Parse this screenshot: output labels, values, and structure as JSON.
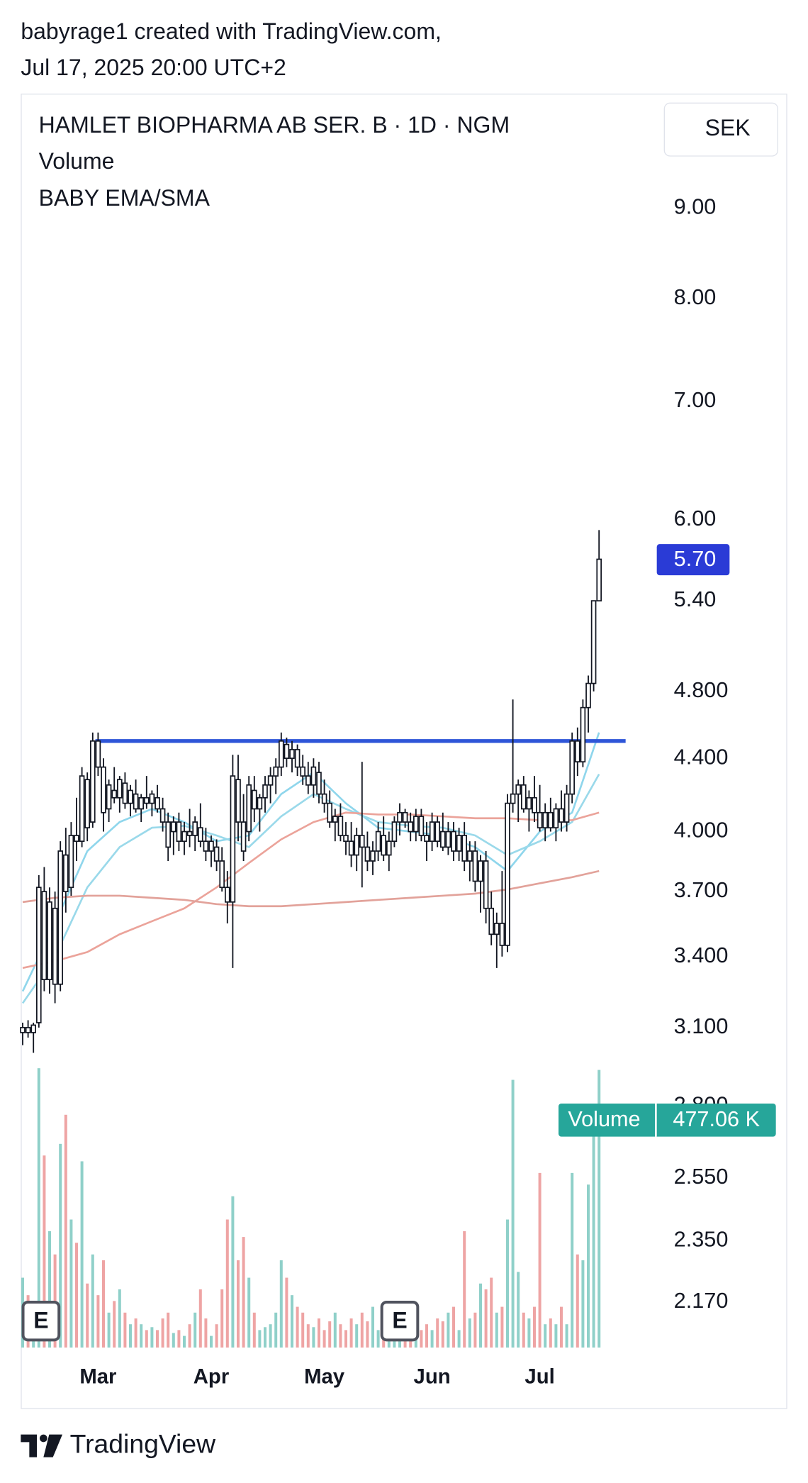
{
  "header": {
    "attribution": "babyrage1 created with TradingView.com,",
    "timestamp": "Jul 17, 2025 20:00 UTC+2"
  },
  "chart_data": {
    "type": "candlestick",
    "title": "HAMLET BIOPHARMA AB SER. B · 1D · NGM",
    "currency": "SEK",
    "log_scale": true,
    "ylim": [
      2.045,
      10.43
    ],
    "yticks": [
      {
        "value": 9,
        "label": "9.00"
      },
      {
        "value": 8,
        "label": "8.00"
      },
      {
        "value": 7,
        "label": "7.00"
      },
      {
        "value": 6,
        "label": "6.00"
      },
      {
        "value": 5.4,
        "label": "5.40"
      },
      {
        "value": 4.8,
        "label": "4.800"
      },
      {
        "value": 4.4,
        "label": "4.400"
      },
      {
        "value": 4,
        "label": "4.000"
      },
      {
        "value": 3.7,
        "label": "3.700"
      },
      {
        "value": 3.4,
        "label": "3.400"
      },
      {
        "value": 3.1,
        "label": "3.100"
      },
      {
        "value": 2.8,
        "label": "2.800"
      },
      {
        "value": 2.55,
        "label": "2.550"
      },
      {
        "value": 2.35,
        "label": "2.350"
      },
      {
        "value": 2.17,
        "label": "2.170"
      }
    ],
    "categories": [
      null,
      null,
      null,
      null,
      null,
      null,
      null,
      null,
      null,
      null,
      null,
      null,
      null,
      null,
      "Mar",
      null,
      null,
      null,
      null,
      null,
      null,
      null,
      null,
      null,
      null,
      null,
      null,
      null,
      null,
      null,
      null,
      null,
      null,
      null,
      null,
      "Apr",
      null,
      null,
      null,
      null,
      null,
      null,
      null,
      null,
      null,
      null,
      null,
      null,
      null,
      null,
      null,
      null,
      null,
      null,
      null,
      null,
      "May",
      null,
      null,
      null,
      null,
      null,
      null,
      null,
      null,
      null,
      null,
      null,
      null,
      null,
      null,
      null,
      null,
      null,
      null,
      null,
      "Jun",
      null,
      null,
      null,
      null,
      null,
      null,
      null,
      null,
      null,
      null,
      null,
      null,
      null,
      null,
      null,
      null,
      null,
      null,
      null,
      "Jul",
      null,
      null,
      null,
      null,
      null,
      null,
      null,
      null,
      null,
      null,
      null
    ],
    "open": [
      3.08,
      3.1,
      3.08,
      3.12,
      3.7,
      3.3,
      3.62,
      3.28,
      3.88,
      3.72,
      3.98,
      3.95,
      4.28,
      4.05,
      4.5,
      4.35,
      4.12,
      4.22,
      4.18,
      4.26,
      4.15,
      4.2,
      4.12,
      4.18,
      4.15,
      4.18,
      4.12,
      4.05,
      4.0,
      4.05,
      3.95,
      4.0,
      3.98,
      4.02,
      3.95,
      3.9,
      3.92,
      3.85,
      3.72,
      3.65,
      4.28,
      4.05,
      4.0,
      4.22,
      4.12,
      4.18,
      4.25,
      4.3,
      4.35,
      4.48,
      4.4,
      4.45,
      4.35,
      4.3,
      4.25,
      4.32,
      4.2,
      4.15,
      4.05,
      4.08,
      3.98,
      3.95,
      3.88,
      3.98,
      3.92,
      3.85,
      3.9,
      3.98,
      3.88,
      3.95,
      4.05,
      4.1,
      4.05,
      4.0,
      4.08,
      3.98,
      3.95,
      4.05,
      4.0,
      3.92,
      4.0,
      3.9,
      3.98,
      3.85,
      3.9,
      3.75,
      3.85,
      3.62,
      3.5,
      3.55,
      3.45,
      4.15,
      4.2,
      4.25,
      4.12,
      4.18,
      4.1,
      4.02,
      4.1,
      4.02,
      4.12,
      4.05,
      4.2,
      4.5,
      4.38,
      4.7,
      4.85,
      5.4
    ],
    "high": [
      3.12,
      3.13,
      3.12,
      3.78,
      3.82,
      3.72,
      3.7,
      3.95,
      4.02,
      4.05,
      4.18,
      4.35,
      4.32,
      4.55,
      4.55,
      4.4,
      4.28,
      4.35,
      4.3,
      4.32,
      4.25,
      4.28,
      4.2,
      4.3,
      4.22,
      4.25,
      4.18,
      4.1,
      4.08,
      4.1,
      4.05,
      4.12,
      4.08,
      4.15,
      4.02,
      3.98,
      3.96,
      3.92,
      3.8,
      4.42,
      4.42,
      4.2,
      4.3,
      4.3,
      4.2,
      4.3,
      4.35,
      4.4,
      4.55,
      4.52,
      4.5,
      4.48,
      4.42,
      4.38,
      4.4,
      4.38,
      4.28,
      4.22,
      4.12,
      4.15,
      4.05,
      4.05,
      4.02,
      4.38,
      4.0,
      3.95,
      4.05,
      4.08,
      4.0,
      4.08,
      4.15,
      4.12,
      4.1,
      4.12,
      4.12,
      4.05,
      4.1,
      4.08,
      4.1,
      4.05,
      4.05,
      4.02,
      4.05,
      3.95,
      3.95,
      3.88,
      3.9,
      3.7,
      3.6,
      3.8,
      4.2,
      4.75,
      4.28,
      4.3,
      4.22,
      4.3,
      4.25,
      4.15,
      4.18,
      4.15,
      4.22,
      4.25,
      4.55,
      4.58,
      4.75,
      4.9,
      5.4,
      5.92
    ],
    "low": [
      3.03,
      3.06,
      3.0,
      3.1,
      3.25,
      3.24,
      3.2,
      3.25,
      3.6,
      3.68,
      3.85,
      3.92,
      3.95,
      4.02,
      4.3,
      4.0,
      4.05,
      4.15,
      4.1,
      4.12,
      4.08,
      4.1,
      4.05,
      4.12,
      4.08,
      4.1,
      4.0,
      3.85,
      3.88,
      3.9,
      3.88,
      3.92,
      3.9,
      3.92,
      3.85,
      3.82,
      3.8,
      3.7,
      3.55,
      3.35,
      3.95,
      3.85,
      3.95,
      4.05,
      4.0,
      4.1,
      4.15,
      4.2,
      4.3,
      4.35,
      4.32,
      4.3,
      4.25,
      4.2,
      4.18,
      4.15,
      4.1,
      4.02,
      3.95,
      3.95,
      3.88,
      3.82,
      3.8,
      3.72,
      3.8,
      3.78,
      3.85,
      3.85,
      3.8,
      3.92,
      3.98,
      4.02,
      3.95,
      3.95,
      3.95,
      3.85,
      3.9,
      3.92,
      3.9,
      3.88,
      3.85,
      3.85,
      3.8,
      3.75,
      3.7,
      3.6,
      3.55,
      3.45,
      3.35,
      3.4,
      3.42,
      4.1,
      4.05,
      4.1,
      4.0,
      4.05,
      4.0,
      3.95,
      4.0,
      3.95,
      4.0,
      4.0,
      4.15,
      4.3,
      4.35,
      4.55,
      4.8,
      5.4
    ],
    "close": [
      3.1,
      3.08,
      3.11,
      3.72,
      3.3,
      3.65,
      3.28,
      3.9,
      3.7,
      3.98,
      3.95,
      4.3,
      4.02,
      4.5,
      4.35,
      4.1,
      4.25,
      4.18,
      4.28,
      4.15,
      4.22,
      4.12,
      4.18,
      4.15,
      4.2,
      4.12,
      4.05,
      3.92,
      4.05,
      3.95,
      4.0,
      3.98,
      4.05,
      3.95,
      3.9,
      3.95,
      3.85,
      3.72,
      3.65,
      4.3,
      4.05,
      3.9,
      4.25,
      4.12,
      4.18,
      4.25,
      4.3,
      4.35,
      4.5,
      4.4,
      4.45,
      4.35,
      4.3,
      4.25,
      4.35,
      4.2,
      4.15,
      4.05,
      4.08,
      3.98,
      3.95,
      3.88,
      3.98,
      3.92,
      3.85,
      3.9,
      4.0,
      3.88,
      3.95,
      4.05,
      4.1,
      4.05,
      4.0,
      4.08,
      3.98,
      3.95,
      4.05,
      3.95,
      3.92,
      4.0,
      3.9,
      3.98,
      3.85,
      3.9,
      3.75,
      3.85,
      3.62,
      3.5,
      3.55,
      3.45,
      4.15,
      4.2,
      4.25,
      4.12,
      4.18,
      4.1,
      4.02,
      4.1,
      4.02,
      4.12,
      4.05,
      4.2,
      4.5,
      4.38,
      4.7,
      4.85,
      5.4,
      5.7
    ],
    "candle_fill": "#ffffff",
    "candle_stroke": "#131722",
    "last_price_label": "5.70",
    "last_price_color": "#2a3bd6",
    "volume": {
      "label": "Volume",
      "last_value_label": "477.06 K",
      "ylim": [
        0,
        650000
      ],
      "up_color": "#8fd0c9",
      "down_color": "#eea4a4",
      "badge_color": "#26a69a",
      "values": [
        120000,
        90000,
        60000,
        480000,
        330000,
        200000,
        160000,
        350000,
        400000,
        220000,
        180000,
        320000,
        110000,
        160000,
        90000,
        150000,
        60000,
        80000,
        100000,
        60000,
        40000,
        50000,
        40000,
        30000,
        35000,
        30000,
        50000,
        60000,
        25000,
        30000,
        20000,
        40000,
        60000,
        100000,
        50000,
        20000,
        40000,
        100000,
        220000,
        260000,
        150000,
        190000,
        120000,
        60000,
        30000,
        35000,
        40000,
        60000,
        150000,
        120000,
        90000,
        70000,
        60000,
        40000,
        35000,
        50000,
        30000,
        45000,
        60000,
        40000,
        30000,
        50000,
        40000,
        60000,
        45000,
        70000,
        30000,
        55000,
        40000,
        50000,
        35000,
        40000,
        30000,
        60000,
        30000,
        40000,
        30000,
        50000,
        45000,
        60000,
        70000,
        30000,
        200000,
        50000,
        60000,
        110000,
        100000,
        120000,
        60000,
        70000,
        220000,
        460000,
        130000,
        60000,
        50000,
        70000,
        300000,
        40000,
        50000,
        40000,
        70000,
        40000,
        300000,
        160000,
        150000,
        280000,
        380000,
        477060
      ]
    },
    "indicator": {
      "name": "BABY EMA/SMA",
      "lines": [
        {
          "color": "#8fd6ec",
          "x": [
            0,
            6,
            12,
            18,
            24,
            30,
            36,
            42,
            48,
            54,
            60,
            66,
            72,
            78,
            84,
            90,
            96,
            102,
            107
          ],
          "values": [
            3.25,
            3.55,
            3.9,
            4.05,
            4.12,
            4.05,
            3.95,
            3.98,
            4.2,
            4.32,
            4.15,
            4.02,
            4.0,
            3.98,
            3.92,
            3.8,
            4.0,
            4.1,
            4.55
          ]
        },
        {
          "color": "#9ad9ea",
          "x": [
            0,
            6,
            12,
            18,
            24,
            30,
            36,
            42,
            48,
            54,
            60,
            66,
            72,
            78,
            84,
            90,
            96,
            102,
            107
          ],
          "values": [
            3.2,
            3.4,
            3.72,
            3.92,
            4.02,
            4.03,
            3.98,
            3.92,
            4.08,
            4.2,
            4.12,
            4.05,
            4.03,
            4.02,
            3.98,
            3.88,
            3.95,
            4.05,
            4.31
          ]
        },
        {
          "color": "#eba39a",
          "x": [
            0,
            6,
            12,
            18,
            24,
            30,
            36,
            42,
            48,
            54,
            60,
            66,
            72,
            78,
            84,
            90,
            96,
            102,
            107
          ],
          "values": [
            3.35,
            3.38,
            3.42,
            3.5,
            3.56,
            3.62,
            3.72,
            3.84,
            3.96,
            4.05,
            4.1,
            4.09,
            4.09,
            4.08,
            4.07,
            4.07,
            4.06,
            4.06,
            4.1
          ]
        },
        {
          "color": "#e2a29a",
          "x": [
            0,
            6,
            12,
            18,
            24,
            30,
            36,
            42,
            48,
            54,
            60,
            66,
            72,
            78,
            84,
            90,
            96,
            102,
            107
          ],
          "values": [
            3.65,
            3.67,
            3.68,
            3.68,
            3.67,
            3.66,
            3.64,
            3.63,
            3.63,
            3.64,
            3.65,
            3.66,
            3.67,
            3.68,
            3.69,
            3.71,
            3.74,
            3.77,
            3.8
          ]
        }
      ]
    },
    "resistance": {
      "value": 4.5,
      "color": "#2e55d8"
    },
    "earnings_markers": [
      {
        "label": "E",
        "index": 2
      },
      {
        "label": "E",
        "index": 70
      }
    ]
  },
  "footer": {
    "brand": "TradingView"
  }
}
